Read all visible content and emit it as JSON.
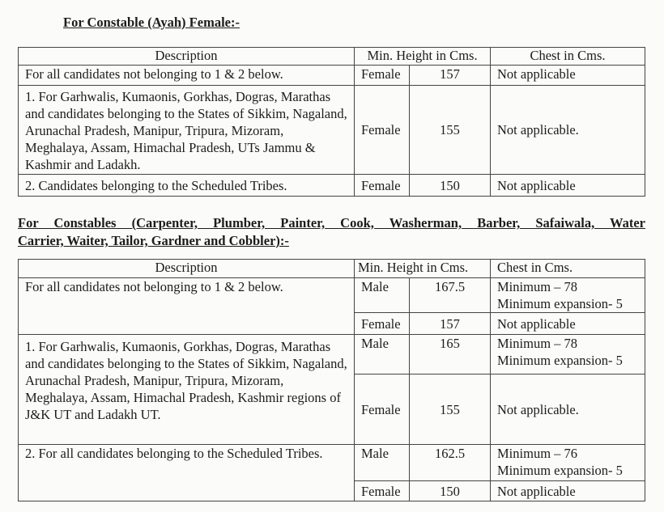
{
  "section1": {
    "title": "For Constable (Ayah) Female:-",
    "headers": {
      "description": "Description",
      "height": "Min. Height in Cms.",
      "chest": "Chest in Cms."
    },
    "rows": [
      {
        "description": "For all candidates not belonging to 1 & 2 below.",
        "gender": "Female",
        "height": "157",
        "chest": "Not applicable"
      },
      {
        "description": "1. For Garhwalis, Kumaonis, Gorkhas, Dogras, Marathas and candidates belonging to the States of Sikkim, Nagaland, Arunachal Pradesh, Manipur, Tripura, Mizoram, Meghalaya, Assam, Himachal Pradesh, UTs Jammu & Kashmir and Ladakh.",
        "gender": "Female",
        "height": "155",
        "chest": "Not applicable."
      },
      {
        "description": "2. Candidates belonging to the Scheduled Tribes.",
        "gender": "Female",
        "height": "150",
        "chest": "Not applicable"
      }
    ]
  },
  "section2": {
    "title_line1": "For Constables (Carpenter, Plumber, Painter, Cook, Washerman, Barber, Safaiwala, Water",
    "title_line2": "Carrier, Waiter, Tailor, Gardner and Cobbler):-",
    "headers": {
      "description": "Description",
      "height": "Min. Height in Cms.",
      "chest": "Chest in Cms."
    },
    "groups": [
      {
        "description": "For all candidates not belonging to 1 & 2 below.",
        "male": {
          "gender": "Male",
          "height": "167.5",
          "chest1": "Minimum – 78",
          "chest2": "Minimum expansion- 5"
        },
        "female": {
          "gender": "Female",
          "height": "157",
          "chest": "Not applicable"
        }
      },
      {
        "description": "1. For Garhwalis, Kumaonis, Gorkhas, Dogras, Marathas and candidates belonging to the States of Sikkim, Nagaland, Arunachal Pradesh, Manipur, Tripura, Mizoram, Meghalaya, Assam, Himachal Pradesh, Kashmir regions of J&K UT and Ladakh UT.",
        "male": {
          "gender": "Male",
          "height": "165",
          "chest1": "Minimum – 78",
          "chest2": "Minimum expansion- 5"
        },
        "female": {
          "gender": "Female",
          "height": "155",
          "chest": "Not applicable."
        }
      },
      {
        "description": "2. For all candidates belonging to the Scheduled Tribes.",
        "male": {
          "gender": "Male",
          "height": "162.5",
          "chest1": "Minimum – 76",
          "chest2": "Minimum expansion- 5"
        },
        "female": {
          "gender": "Female",
          "height": "150",
          "chest": "Not applicable"
        }
      }
    ]
  }
}
